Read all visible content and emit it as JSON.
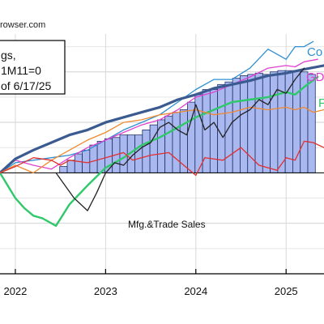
{
  "source_text": "rowser.com",
  "legend_box": {
    "line1": "gs,",
    "line2": "1M11=0",
    "line3": "of 6/17/25"
  },
  "chart_data": {
    "type": "line",
    "title": "",
    "xlabel": "",
    "ylabel": "",
    "x_ticks": [
      "2022",
      "2023",
      "2024",
      "2025"
    ],
    "tick_values": [
      2022.0,
      2023.0,
      2024.0,
      2025.0
    ],
    "xlim": [
      2021.83,
      2025.42
    ],
    "ylim": [
      -0.08,
      0.11
    ],
    "bar_series": {
      "name": "Mfg.&Trade Sales",
      "color": "#aab8f0",
      "start": 2022.45,
      "step": 0.0833,
      "values": [
        0.0,
        0.005,
        0.01,
        0.015,
        0.018,
        0.022,
        0.025,
        0.027,
        0.028,
        0.03,
        0.03,
        0.03,
        0.034,
        0.038,
        0.042,
        0.045,
        0.048,
        0.05,
        0.056,
        0.062,
        0.066,
        0.066,
        0.07,
        0.072,
        0.075,
        0.077,
        0.078,
        0.079,
        0.078,
        0.08,
        0.081,
        0.081,
        0.081,
        0.08,
        0.078
      ]
    },
    "series": [
      {
        "name": "Co",
        "color": "#2f8fd0",
        "width": 1.3,
        "x": [
          2021.83,
          2022.0,
          2022.2,
          2022.4,
          2022.6,
          2022.8,
          2023.0,
          2023.2,
          2023.4,
          2023.6,
          2023.8,
          2024.0,
          2024.2,
          2024.4,
          2024.6,
          2024.8,
          2025.0,
          2025.1,
          2025.2,
          2025.3
        ],
        "y": [
          0.0,
          0.008,
          0.01,
          0.012,
          0.014,
          0.018,
          0.026,
          0.034,
          0.04,
          0.046,
          0.056,
          0.066,
          0.074,
          0.074,
          0.083,
          0.098,
          0.09,
          0.1,
          0.1,
          0.104
        ]
      },
      {
        "name": "GD",
        "color": "#e040d0",
        "width": 1.3,
        "x": [
          2021.83,
          2022.0,
          2022.2,
          2022.4,
          2022.6,
          2022.8,
          2023.0,
          2023.2,
          2023.4,
          2023.6,
          2023.8,
          2024.0,
          2024.2,
          2024.4,
          2024.6,
          2024.8,
          2025.0,
          2025.1,
          2025.2,
          2025.35
        ],
        "y": [
          0.0,
          0.01,
          0.006,
          0.003,
          0.012,
          0.02,
          0.026,
          0.032,
          0.038,
          0.042,
          0.05,
          0.06,
          0.064,
          0.07,
          0.076,
          0.083,
          0.085,
          0.084,
          0.088,
          0.09
        ]
      },
      {
        "name": "",
        "color": "#3a5a90",
        "width": 3.2,
        "x": [
          2021.83,
          2022.0,
          2022.2,
          2022.4,
          2022.6,
          2022.8,
          2023.0,
          2023.2,
          2023.4,
          2023.6,
          2023.8,
          2024.0,
          2024.2,
          2024.4,
          2024.6,
          2024.8,
          2025.0,
          2025.2,
          2025.42
        ],
        "y": [
          0.0,
          0.011,
          0.018,
          0.024,
          0.03,
          0.034,
          0.04,
          0.044,
          0.048,
          0.052,
          0.058,
          0.062,
          0.067,
          0.07,
          0.073,
          0.077,
          0.079,
          0.082,
          0.085
        ]
      },
      {
        "name": "F",
        "color": "#2fc86a",
        "width": 2.4,
        "x": [
          2021.83,
          2022.0,
          2022.1,
          2022.2,
          2022.3,
          2022.45,
          2022.6,
          2022.8,
          2023.0,
          2023.2,
          2023.4,
          2023.6,
          2023.8,
          2024.0,
          2024.2,
          2024.4,
          2024.6,
          2024.8,
          2025.0,
          2025.1,
          2025.2,
          2025.35
        ],
        "y": [
          0.0,
          -0.02,
          -0.028,
          -0.034,
          -0.036,
          -0.042,
          -0.025,
          -0.01,
          0.004,
          0.012,
          0.022,
          0.028,
          0.036,
          0.044,
          0.05,
          0.056,
          0.058,
          0.06,
          0.064,
          0.062,
          0.068,
          0.076
        ]
      },
      {
        "name": "",
        "color": "#f08a30",
        "width": 1.3,
        "x": [
          2021.83,
          2022.0,
          2022.2,
          2022.4,
          2022.6,
          2022.8,
          2023.0,
          2023.2,
          2023.4,
          2023.6,
          2023.8,
          2024.0,
          2024.2,
          2024.4,
          2024.6,
          2024.8,
          2025.0,
          2025.1,
          2025.2,
          2025.3,
          2025.42
        ],
        "y": [
          0.0,
          0.006,
          0.0,
          0.01,
          0.018,
          0.026,
          0.032,
          0.04,
          0.042,
          0.046,
          0.048,
          0.05,
          0.046,
          0.048,
          0.052,
          0.05,
          0.052,
          0.05,
          0.052,
          0.048,
          0.05
        ]
      },
      {
        "name": "",
        "color": "#e03030",
        "width": 1.3,
        "x": [
          2021.83,
          2022.0,
          2022.2,
          2022.4,
          2022.5,
          2022.6,
          2022.8,
          2023.0,
          2023.2,
          2023.3,
          2023.5,
          2023.7,
          2023.9,
          2024.0,
          2024.1,
          2024.3,
          2024.5,
          2024.7,
          2024.9,
          2025.0,
          2025.1,
          2025.2,
          2025.3,
          2025.42
        ],
        "y": [
          0.0,
          0.005,
          0.012,
          0.01,
          0.006,
          0.01,
          0.008,
          0.012,
          0.016,
          0.01,
          0.014,
          0.016,
          0.004,
          -0.002,
          0.012,
          0.01,
          0.02,
          0.006,
          0.002,
          0.012,
          0.01,
          0.025,
          0.024,
          0.02
        ]
      },
      {
        "name": "",
        "color": "#222222",
        "width": 1.3,
        "x": [
          2022.45,
          2022.55,
          2022.65,
          2022.8,
          2022.9,
          2023.0,
          2023.1,
          2023.2,
          2023.3,
          2023.4,
          2023.5,
          2023.6,
          2023.7,
          2023.8,
          2023.9,
          2024.0,
          2024.1,
          2024.2,
          2024.3,
          2024.4,
          2024.5,
          2024.6,
          2024.7,
          2024.8,
          2024.9,
          2025.0,
          2025.1,
          2025.2
        ],
        "y": [
          0.0,
          -0.01,
          -0.02,
          -0.03,
          -0.016,
          0.0,
          0.008,
          0.006,
          0.014,
          0.02,
          0.024,
          0.036,
          0.04,
          0.034,
          0.03,
          0.054,
          0.034,
          0.04,
          0.028,
          0.04,
          0.046,
          0.05,
          0.058,
          0.054,
          0.066,
          0.063,
          0.074,
          0.083
        ]
      }
    ],
    "annotations": [
      {
        "text": "Mfg.&Trade Sales"
      },
      {
        "text": "Co"
      },
      {
        "text": "GD"
      },
      {
        "text": "F"
      }
    ],
    "grid": true
  }
}
